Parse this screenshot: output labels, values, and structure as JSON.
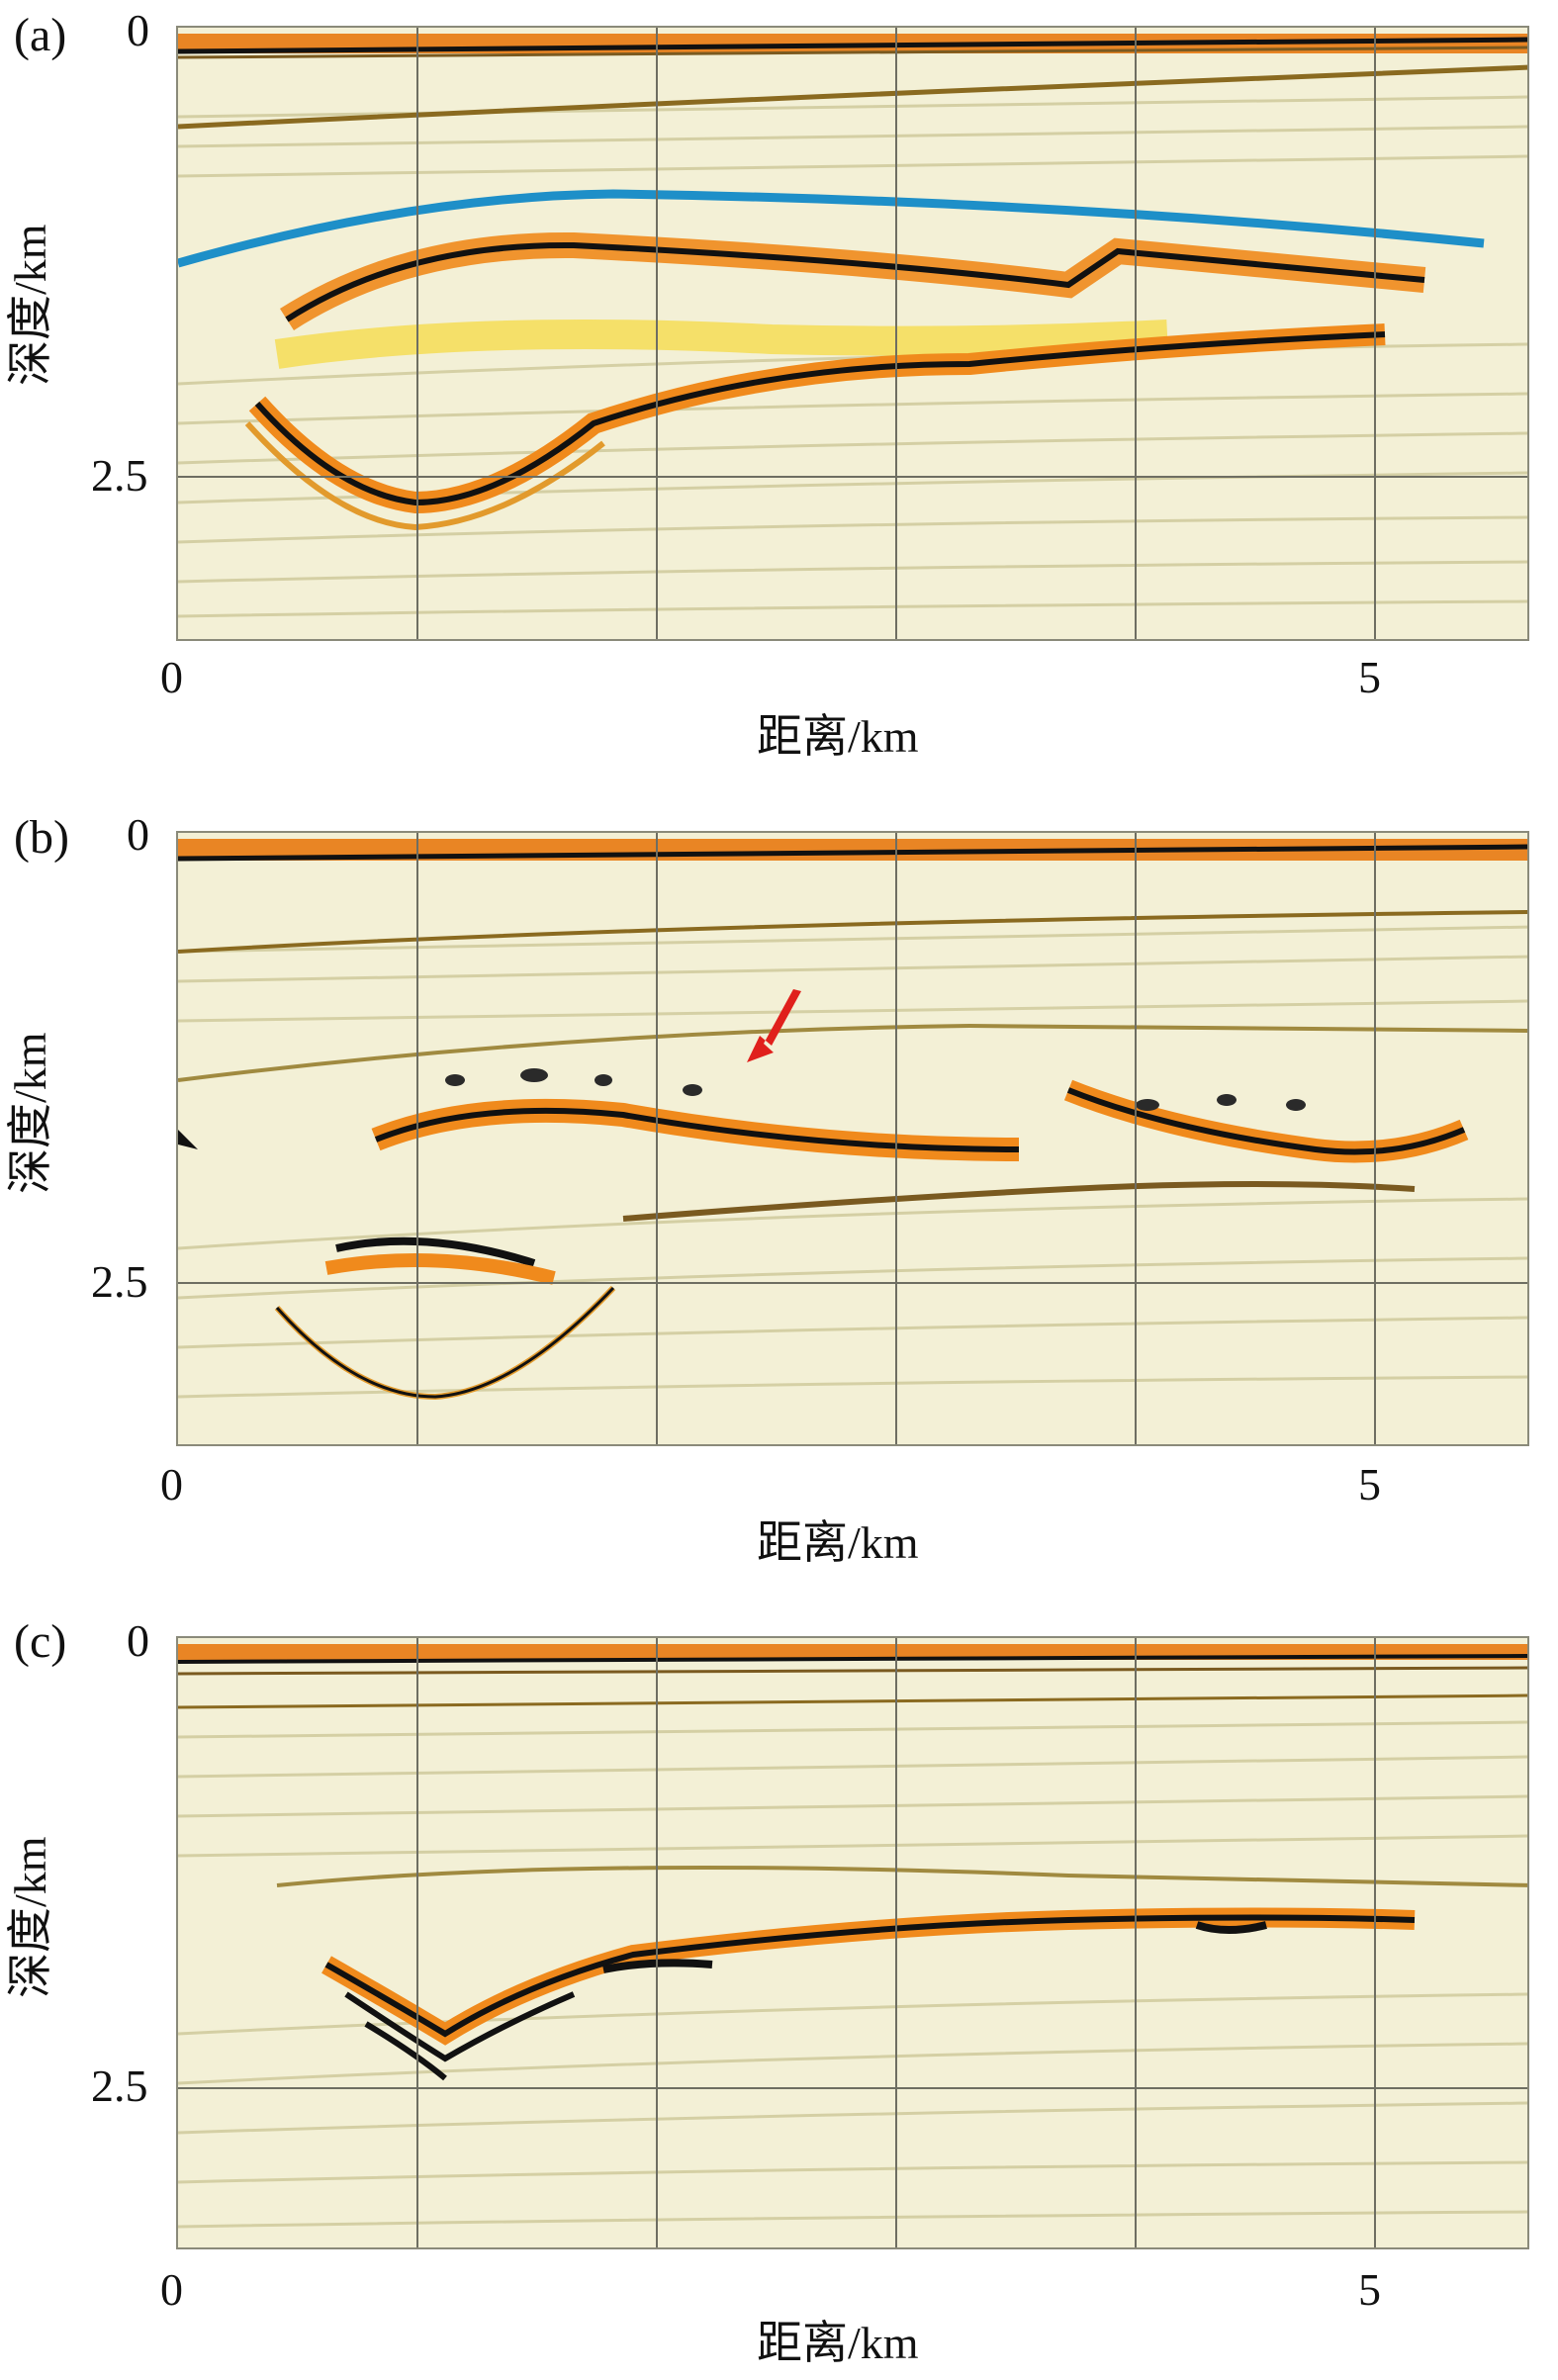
{
  "panels": [
    {
      "label": "(a)",
      "y_ticks": [
        "0",
        "2.5"
      ],
      "x_ticks": [
        "0",
        "5"
      ],
      "ylabel": "深度/km",
      "xlabel": "距离/km"
    },
    {
      "label": "(b)",
      "y_ticks": [
        "0",
        "2.5"
      ],
      "x_ticks": [
        "0",
        "5"
      ],
      "ylabel": "深度/km",
      "xlabel": "距离/km"
    },
    {
      "label": "(c)",
      "y_ticks": [
        "0",
        "2.5"
      ],
      "x_ticks": [
        "0",
        "5"
      ],
      "ylabel": "深度/km",
      "xlabel": "距离/km"
    }
  ],
  "colors": {
    "background": "#f3f0d6",
    "orange": "#f08a1c",
    "yellow": "#f5d83a",
    "black": "#111111",
    "blue_horizon": "#1e8fc8",
    "arrow": "#e0201c",
    "grid": "#6e6e62"
  }
}
